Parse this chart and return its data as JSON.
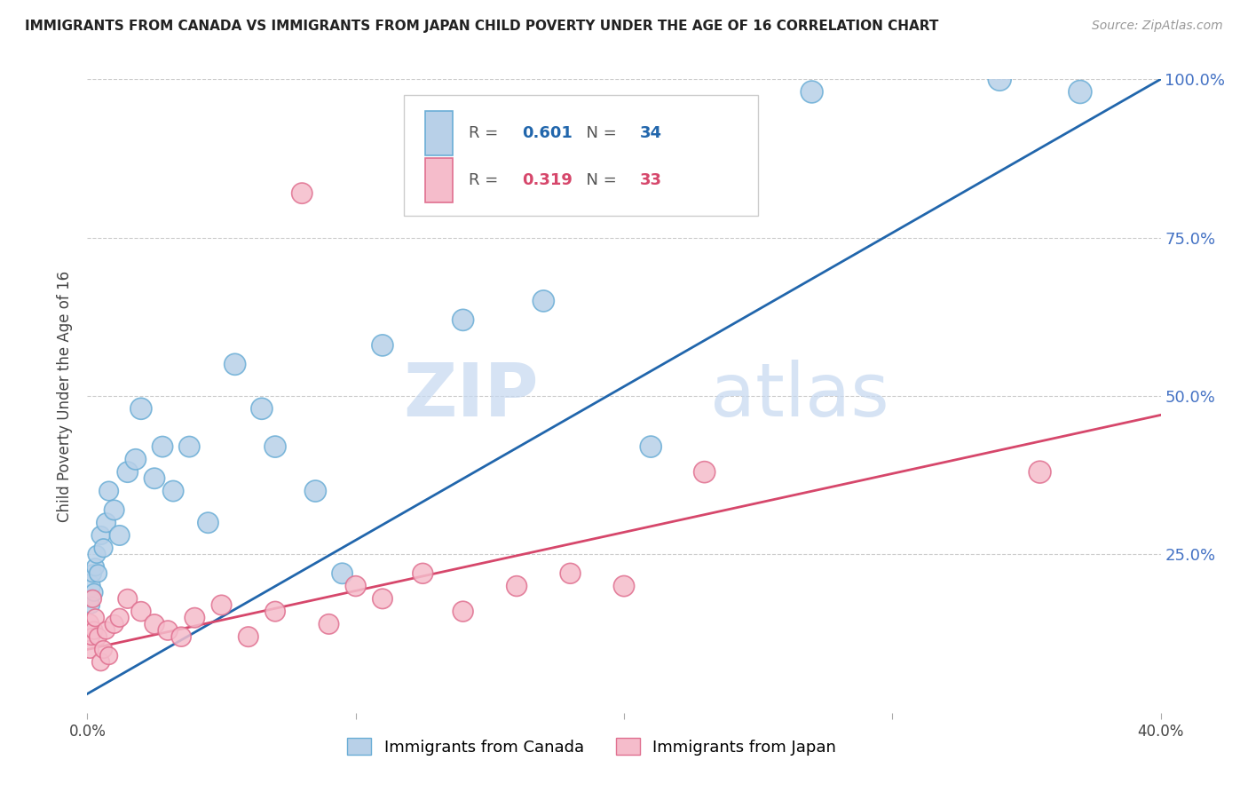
{
  "title": "IMMIGRANTS FROM CANADA VS IMMIGRANTS FROM JAPAN CHILD POVERTY UNDER THE AGE OF 16 CORRELATION CHART",
  "source": "Source: ZipAtlas.com",
  "ylabel": "Child Poverty Under the Age of 16",
  "xlim": [
    0.0,
    40.0
  ],
  "ylim": [
    0.0,
    100.0
  ],
  "canada_color": "#b8d0e8",
  "canada_edge_color": "#6baed6",
  "japan_color": "#f5bccb",
  "japan_edge_color": "#e07090",
  "canada_line_color": "#2166ac",
  "japan_line_color": "#d6476b",
  "legend_canada": "Immigrants from Canada",
  "legend_japan": "Immigrants from Japan",
  "R_canada": 0.601,
  "N_canada": 34,
  "R_japan": 0.319,
  "N_japan": 33,
  "watermark_zip": "ZIP",
  "watermark_atlas": "atlas",
  "canada_x": [
    0.05,
    0.1,
    0.15,
    0.2,
    0.25,
    0.3,
    0.35,
    0.4,
    0.5,
    0.6,
    0.7,
    0.8,
    1.0,
    1.2,
    1.5,
    1.8,
    2.0,
    2.5,
    2.8,
    3.2,
    3.8,
    4.5,
    5.5,
    6.5,
    7.0,
    8.5,
    9.5,
    11.0,
    14.0,
    17.0,
    21.0,
    27.0,
    34.0,
    37.0
  ],
  "canada_y": [
    20,
    18,
    17,
    22,
    19,
    23,
    25,
    22,
    28,
    26,
    30,
    35,
    32,
    28,
    38,
    40,
    48,
    37,
    42,
    35,
    42,
    30,
    55,
    48,
    42,
    35,
    22,
    58,
    62,
    65,
    42,
    98,
    100,
    98
  ],
  "canada_sizes": [
    350,
    200,
    180,
    200,
    200,
    200,
    200,
    200,
    220,
    220,
    240,
    240,
    260,
    260,
    280,
    280,
    300,
    280,
    280,
    280,
    280,
    280,
    300,
    300,
    300,
    300,
    280,
    300,
    300,
    300,
    300,
    320,
    350,
    350
  ],
  "japan_x": [
    0.05,
    0.1,
    0.15,
    0.2,
    0.25,
    0.3,
    0.4,
    0.5,
    0.6,
    0.7,
    0.8,
    1.0,
    1.2,
    1.5,
    2.0,
    2.5,
    3.0,
    3.5,
    4.0,
    5.0,
    6.0,
    7.0,
    8.0,
    9.0,
    10.0,
    11.0,
    12.5,
    14.0,
    16.0,
    18.0,
    20.0,
    23.0,
    35.5
  ],
  "japan_y": [
    14,
    10,
    12,
    18,
    13,
    15,
    12,
    8,
    10,
    13,
    9,
    14,
    15,
    18,
    16,
    14,
    13,
    12,
    15,
    17,
    12,
    16,
    82,
    14,
    20,
    18,
    22,
    16,
    20,
    22,
    20,
    38,
    38
  ],
  "japan_sizes": [
    280,
    200,
    180,
    200,
    200,
    200,
    200,
    200,
    200,
    200,
    200,
    220,
    220,
    240,
    250,
    250,
    250,
    250,
    260,
    260,
    260,
    260,
    280,
    260,
    270,
    260,
    270,
    270,
    270,
    270,
    280,
    300,
    320
  ],
  "canada_regr": [
    3.0,
    100.0
  ],
  "japan_regr": [
    10.0,
    47.0
  ]
}
